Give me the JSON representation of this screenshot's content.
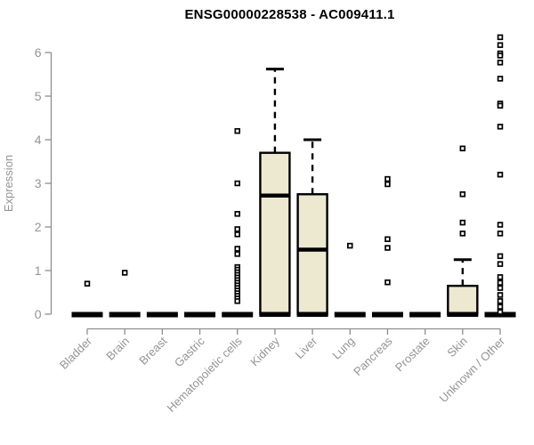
{
  "chart_data": {
    "type": "boxplot",
    "title": "ENSG00000228538 - AC009411.1",
    "ylabel": "Expression",
    "xlabel": "",
    "ylim": [
      0,
      6.45
    ],
    "yticks": [
      0,
      1,
      2,
      3,
      4,
      5,
      6
    ],
    "grid": false,
    "legend": "none",
    "colors": {
      "box_fill": "#ede8d0",
      "box_stroke": "#000000",
      "median": "#000000",
      "whisker": "#000000",
      "outlier_stroke": "#000000",
      "outlier_fill": "#ffffff",
      "axis": "#8e8e8e",
      "tick_label": "#949494",
      "title": "#000000",
      "background": "#ffffff"
    },
    "categories": [
      "Bladder",
      "Brain",
      "Breast",
      "Gastric",
      "Hematopoietic cells",
      "Kidney",
      "Liver",
      "Lung",
      "Pancreas",
      "Prostate",
      "Skin",
      "Unknown / Other"
    ],
    "boxes": [
      {
        "category": "Bladder",
        "q1": 0,
        "median": 0,
        "q3": 0,
        "whisker_low": 0,
        "whisker_high": 0,
        "outliers": [
          0.7
        ]
      },
      {
        "category": "Brain",
        "q1": 0,
        "median": 0,
        "q3": 0,
        "whisker_low": 0,
        "whisker_high": 0,
        "outliers": [
          0.95
        ]
      },
      {
        "category": "Breast",
        "q1": 0,
        "median": 0,
        "q3": 0,
        "whisker_low": 0,
        "whisker_high": 0,
        "outliers": []
      },
      {
        "category": "Gastric",
        "q1": 0,
        "median": 0,
        "q3": 0,
        "whisker_low": 0,
        "whisker_high": 0,
        "outliers": []
      },
      {
        "category": "Hematopoietic cells",
        "q1": 0,
        "median": 0,
        "q3": 0,
        "whisker_low": 0,
        "whisker_high": 0,
        "outliers": [
          4.2,
          3.0,
          2.3,
          1.95,
          1.83,
          1.5,
          1.38,
          1.08,
          1.02,
          0.96,
          0.9,
          0.84,
          0.78,
          0.72,
          0.66,
          0.6,
          0.54,
          0.48,
          0.42,
          0.36,
          0.3
        ]
      },
      {
        "category": "Kidney",
        "q1": 0,
        "median": 2.72,
        "q3": 3.7,
        "whisker_low": 0,
        "whisker_high": 5.62,
        "outliers": []
      },
      {
        "category": "Liver",
        "q1": 0,
        "median": 1.48,
        "q3": 2.75,
        "whisker_low": 0,
        "whisker_high": 4.0,
        "outliers": []
      },
      {
        "category": "Lung",
        "q1": 0,
        "median": 0,
        "q3": 0,
        "whisker_low": 0,
        "whisker_high": 0,
        "outliers": [
          1.57
        ]
      },
      {
        "category": "Pancreas",
        "q1": 0,
        "median": 0,
        "q3": 0,
        "whisker_low": 0,
        "whisker_high": 0,
        "outliers": [
          3.1,
          2.98,
          1.72,
          1.52,
          0.73
        ]
      },
      {
        "category": "Prostate",
        "q1": 0,
        "median": 0,
        "q3": 0,
        "whisker_low": 0,
        "whisker_high": 0,
        "outliers": []
      },
      {
        "category": "Skin",
        "q1": 0,
        "median": 0,
        "q3": 0.65,
        "whisker_low": 0,
        "whisker_high": 1.25,
        "outliers": [
          3.8,
          2.75,
          2.1,
          1.85
        ]
      },
      {
        "category": "Unknown / Other",
        "q1": 0,
        "median": 0,
        "q3": 0,
        "whisker_low": 0,
        "whisker_high": 0,
        "outliers": [
          6.35,
          6.17,
          5.98,
          5.93,
          5.77,
          5.4,
          4.83,
          4.78,
          4.3,
          3.2,
          2.05,
          1.85,
          1.33,
          1.15,
          0.85,
          0.72,
          0.6,
          0.44,
          0.3,
          0.17,
          0.05
        ]
      }
    ]
  }
}
